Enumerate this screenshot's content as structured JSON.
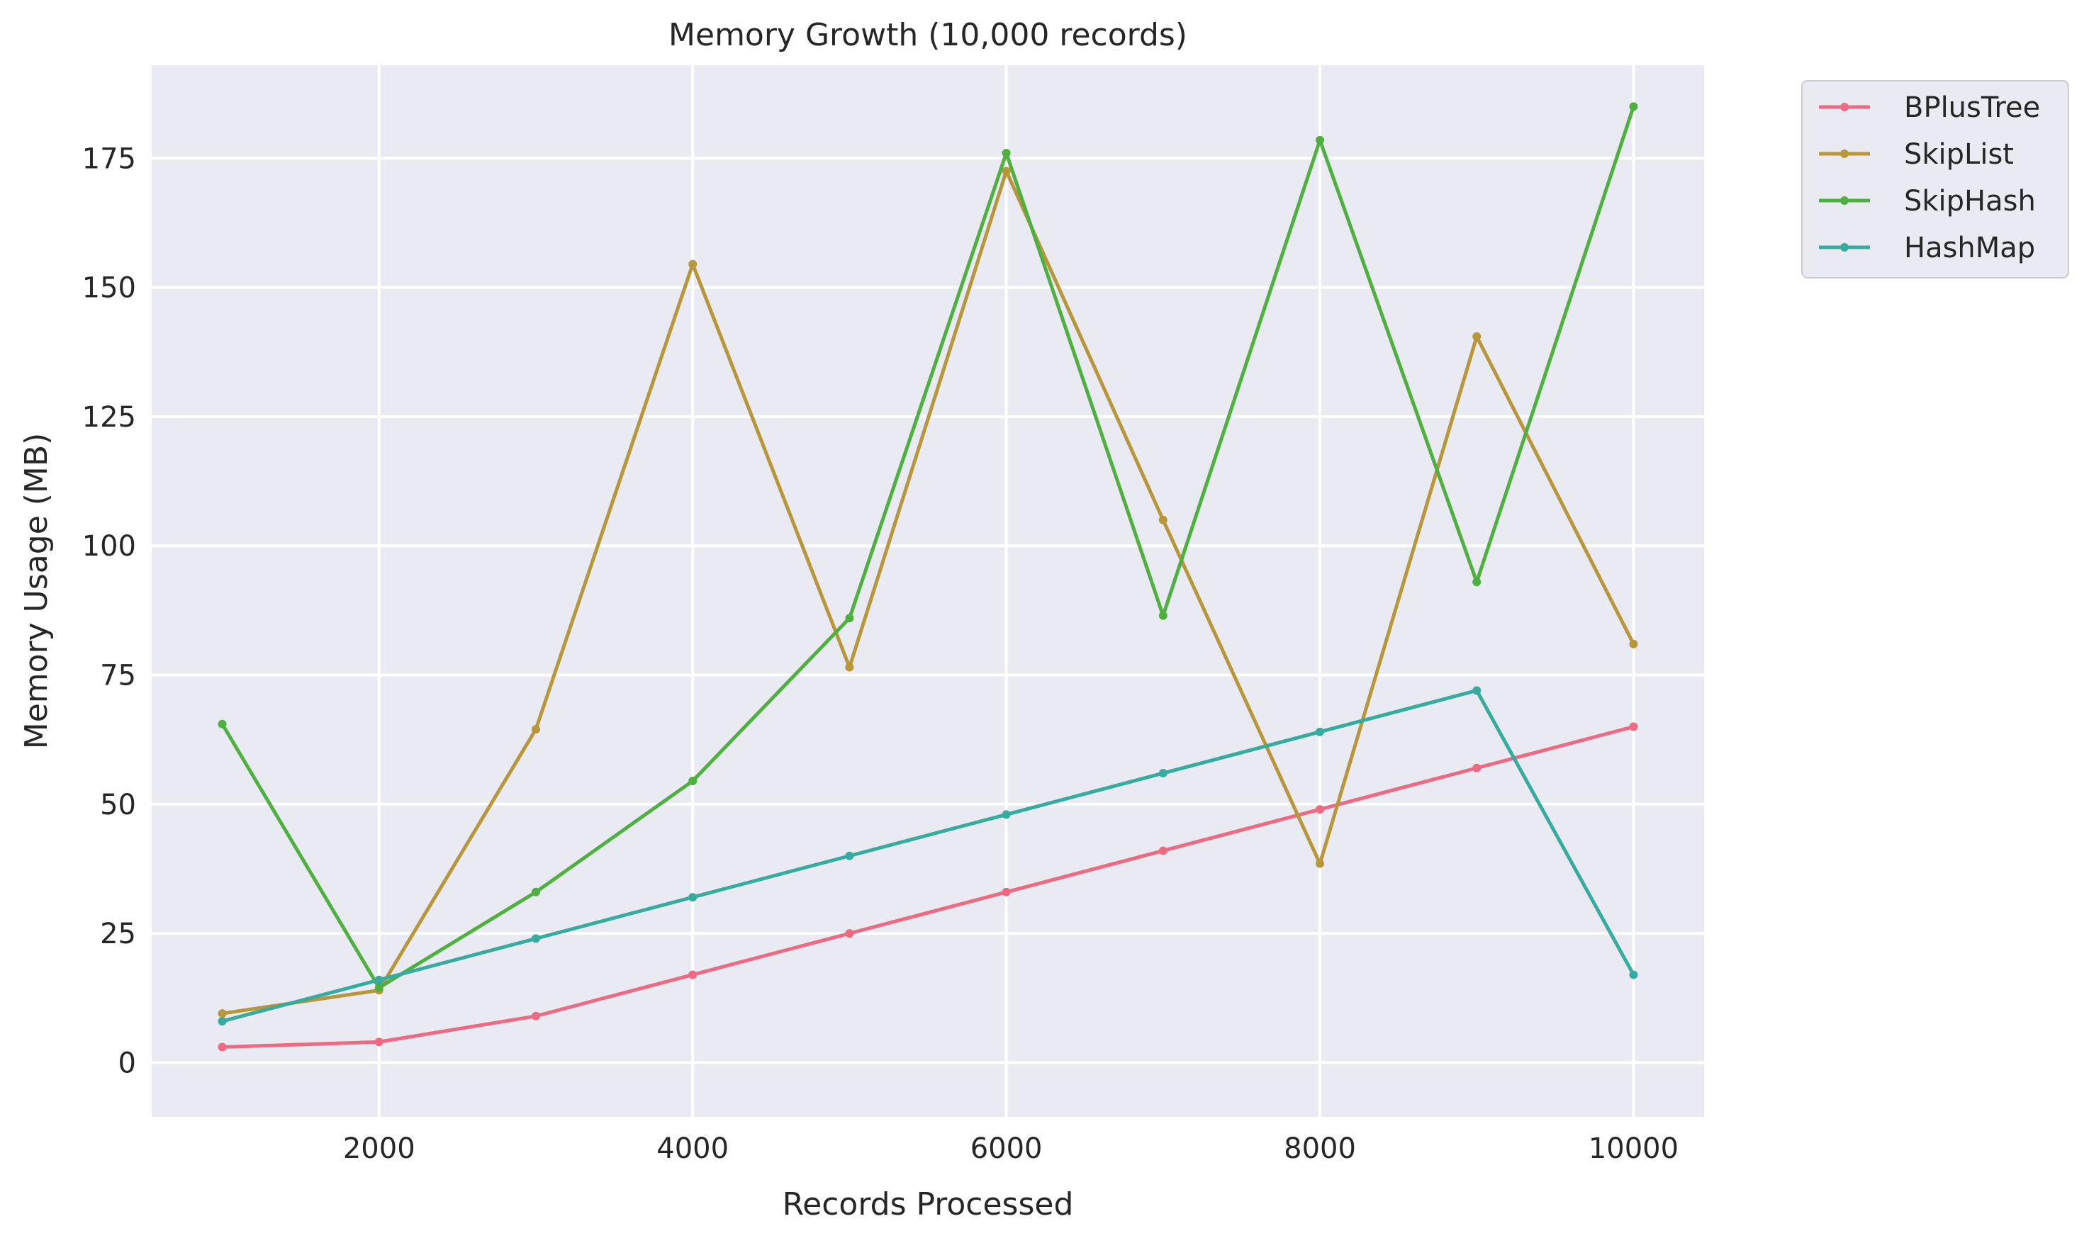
{
  "chart_data": {
    "type": "line",
    "title": "Memory Growth (10,000 records)",
    "xlabel": "Records Processed",
    "ylabel": "Memory Usage (MB)",
    "xlim": [
      550,
      10450
    ],
    "ylim": [
      -10.5,
      193
    ],
    "xticks": [
      2000,
      4000,
      6000,
      8000,
      10000
    ],
    "yticks": [
      0,
      25,
      50,
      75,
      100,
      125,
      150,
      175
    ],
    "grid": true,
    "legend_position": "outside-top-right",
    "x": [
      1000,
      2000,
      3000,
      4000,
      5000,
      6000,
      7000,
      8000,
      9000,
      10000
    ],
    "series": [
      {
        "name": "BPlusTree",
        "color": "#ee6a83",
        "values": [
          3,
          4,
          9,
          17,
          25,
          33,
          41,
          49,
          57,
          65
        ]
      },
      {
        "name": "SkipList",
        "color": "#b8963a",
        "values": [
          9.5,
          14,
          64.5,
          154.5,
          76.5,
          172.5,
          105,
          38.5,
          140.5,
          81
        ]
      },
      {
        "name": "SkipHash",
        "color": "#4eb13f",
        "values": [
          65.5,
          14.5,
          33,
          54.5,
          86,
          176,
          86.5,
          178.5,
          93,
          185
        ]
      },
      {
        "name": "HashMap",
        "color": "#36aba0",
        "values": [
          8,
          16,
          24,
          32,
          40,
          48,
          56,
          64,
          72,
          17
        ]
      }
    ]
  }
}
